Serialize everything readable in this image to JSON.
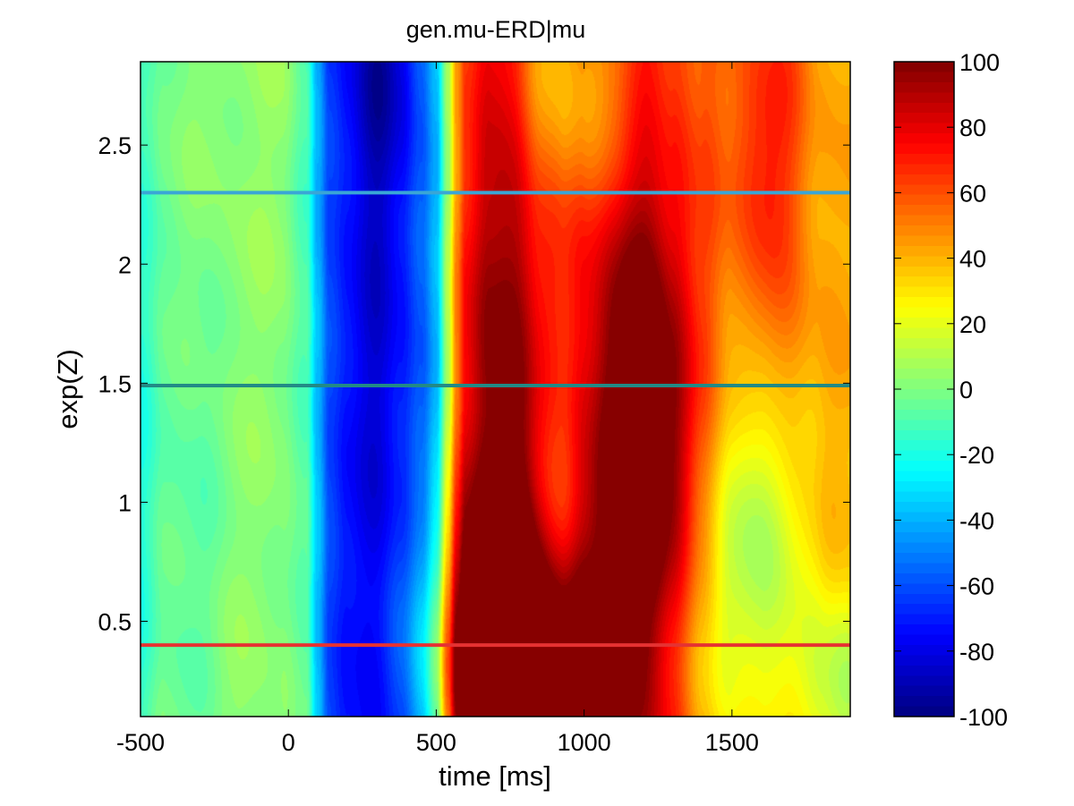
{
  "chart_data": {
    "type": "heatmap",
    "title": "gen.mu-ERD|mu",
    "xlabel": "time [ms]",
    "ylabel": "exp(Z)",
    "xlim": [
      -500,
      1900
    ],
    "ylim": [
      0.1,
      2.85
    ],
    "xticks": [
      -500,
      0,
      500,
      1000,
      1500
    ],
    "xtick_labels": [
      "-500",
      "0",
      "500",
      "1000",
      "1500"
    ],
    "yticks": [
      0.5,
      1,
      1.5,
      2,
      2.5
    ],
    "ytick_labels": [
      "0.5",
      "1",
      "1.5",
      "2",
      "2.5"
    ],
    "colormap": "jet",
    "clim": [
      -100,
      100
    ],
    "colorbar": {
      "ticks": [
        -100,
        -80,
        -60,
        -40,
        -20,
        0,
        20,
        40,
        60,
        80,
        100
      ],
      "tick_labels": [
        "-100",
        "-80",
        "-60",
        "-40",
        "-20",
        "0",
        "20",
        "40",
        "60",
        "80",
        "100"
      ]
    },
    "time_profile": [
      {
        "t": -500,
        "v": -12
      },
      {
        "t": -420,
        "v": 0
      },
      {
        "t": -300,
        "v": 2
      },
      {
        "t": -200,
        "v": 5
      },
      {
        "t": -100,
        "v": 4
      },
      {
        "t": -20,
        "v": 3
      },
      {
        "t": 60,
        "v": -8
      },
      {
        "t": 100,
        "v": -40
      },
      {
        "t": 140,
        "v": -64
      },
      {
        "t": 200,
        "v": -72
      },
      {
        "t": 300,
        "v": -84
      },
      {
        "t": 380,
        "v": -74
      },
      {
        "t": 450,
        "v": -58
      },
      {
        "t": 500,
        "v": -38
      },
      {
        "t": 540,
        "v": 10
      },
      {
        "t": 570,
        "v": 48
      },
      {
        "t": 600,
        "v": 68
      },
      {
        "t": 680,
        "v": 82
      },
      {
        "t": 760,
        "v": 86
      },
      {
        "t": 850,
        "v": 70
      },
      {
        "t": 920,
        "v": 72
      },
      {
        "t": 1000,
        "v": 82
      },
      {
        "t": 1100,
        "v": 86
      },
      {
        "t": 1200,
        "v": 92
      },
      {
        "t": 1300,
        "v": 80
      },
      {
        "t": 1400,
        "v": 62
      },
      {
        "t": 1500,
        "v": 48
      },
      {
        "t": 1600,
        "v": 46
      },
      {
        "t": 1700,
        "v": 52
      },
      {
        "t": 1800,
        "v": 44
      },
      {
        "t": 1900,
        "v": 40
      }
    ],
    "blobs": [
      {
        "t": 700,
        "z": 0.35,
        "v": 60,
        "st": 200,
        "sz": 0.42
      },
      {
        "t": 1000,
        "z": 0.3,
        "v": 55,
        "st": 200,
        "sz": 0.35
      },
      {
        "t": 1200,
        "z": 1.2,
        "v": 45,
        "st": 90,
        "sz": 0.6
      },
      {
        "t": 1200,
        "z": 0.3,
        "v": -40,
        "st": 250,
        "sz": 0.4
      },
      {
        "t": 760,
        "z": 1.4,
        "v": 20,
        "st": 110,
        "sz": 1.0
      },
      {
        "t": 1600,
        "z": 0.9,
        "v": -35,
        "st": 120,
        "sz": 0.45
      },
      {
        "t": 1600,
        "z": 2.5,
        "v": 25,
        "st": 80,
        "sz": 0.5
      },
      {
        "t": 1000,
        "z": 2.8,
        "v": -40,
        "st": 200,
        "sz": 0.45
      },
      {
        "t": 1850,
        "z": 0.2,
        "v": -30,
        "st": 120,
        "sz": 0.3
      },
      {
        "t": 900,
        "z": 0.9,
        "v": -25,
        "st": 60,
        "sz": 0.6
      },
      {
        "t": 300,
        "z": 2.75,
        "v": -10,
        "st": 80,
        "sz": 0.3
      },
      {
        "t": -350,
        "z": 1.0,
        "v": -8,
        "st": 150,
        "sz": 0.8
      }
    ],
    "hlines": [
      {
        "y": 2.3,
        "color": "#3aa6d6"
      },
      {
        "y": 1.49,
        "color": "#228a86"
      },
      {
        "y": 0.4,
        "color": "#e63232"
      }
    ]
  }
}
